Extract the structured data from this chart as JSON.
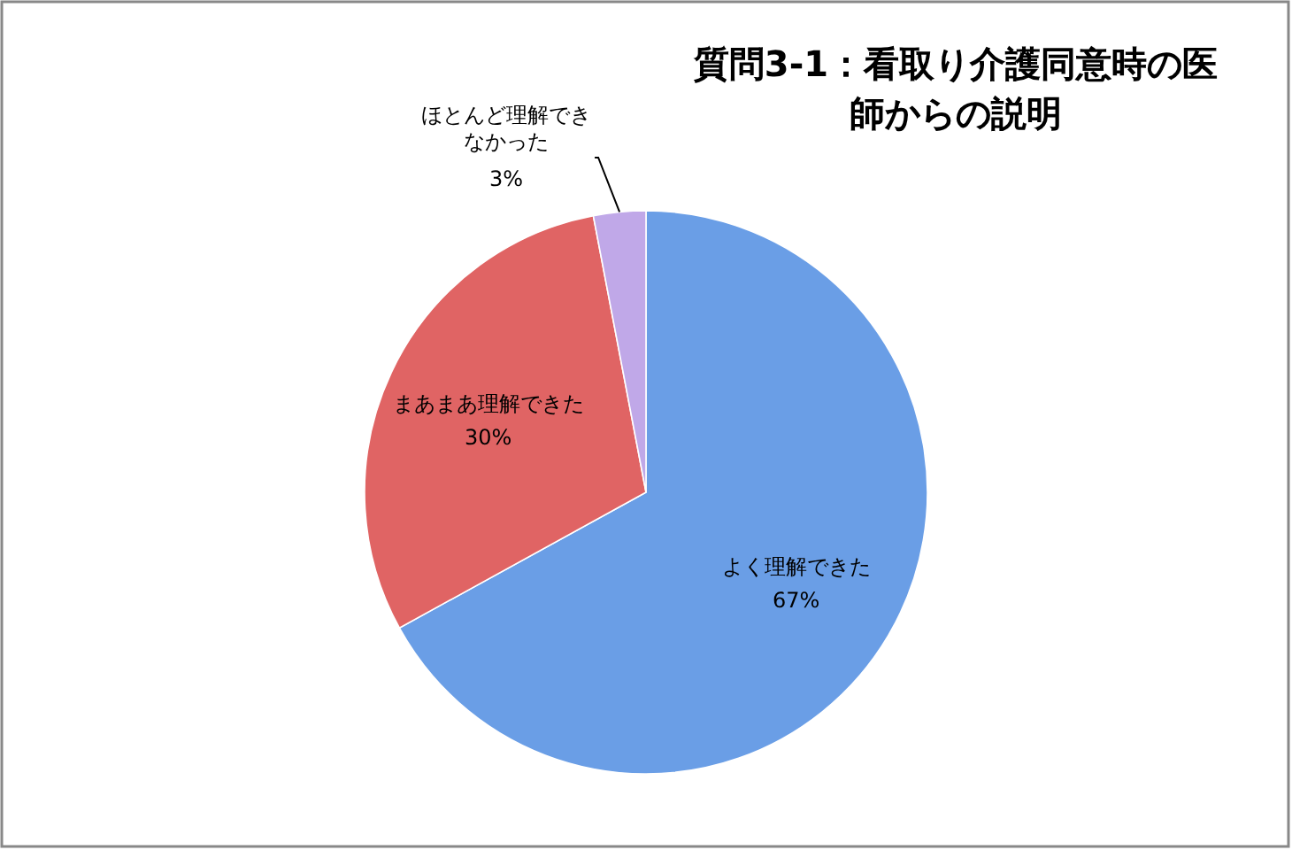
{
  "chart_data": {
    "type": "pie",
    "title": "質問3-1：看取り介護同意時の医師からの説明",
    "categories": [
      "よく理解できた",
      "まあまあ理解できた",
      "ほとんど理解できなかった"
    ],
    "values": [
      67,
      30,
      3
    ],
    "value_labels": [
      "67%",
      "30%",
      "3%"
    ],
    "colors": [
      "#6a9ee6",
      "#e06464",
      "#c0a8e8"
    ]
  }
}
